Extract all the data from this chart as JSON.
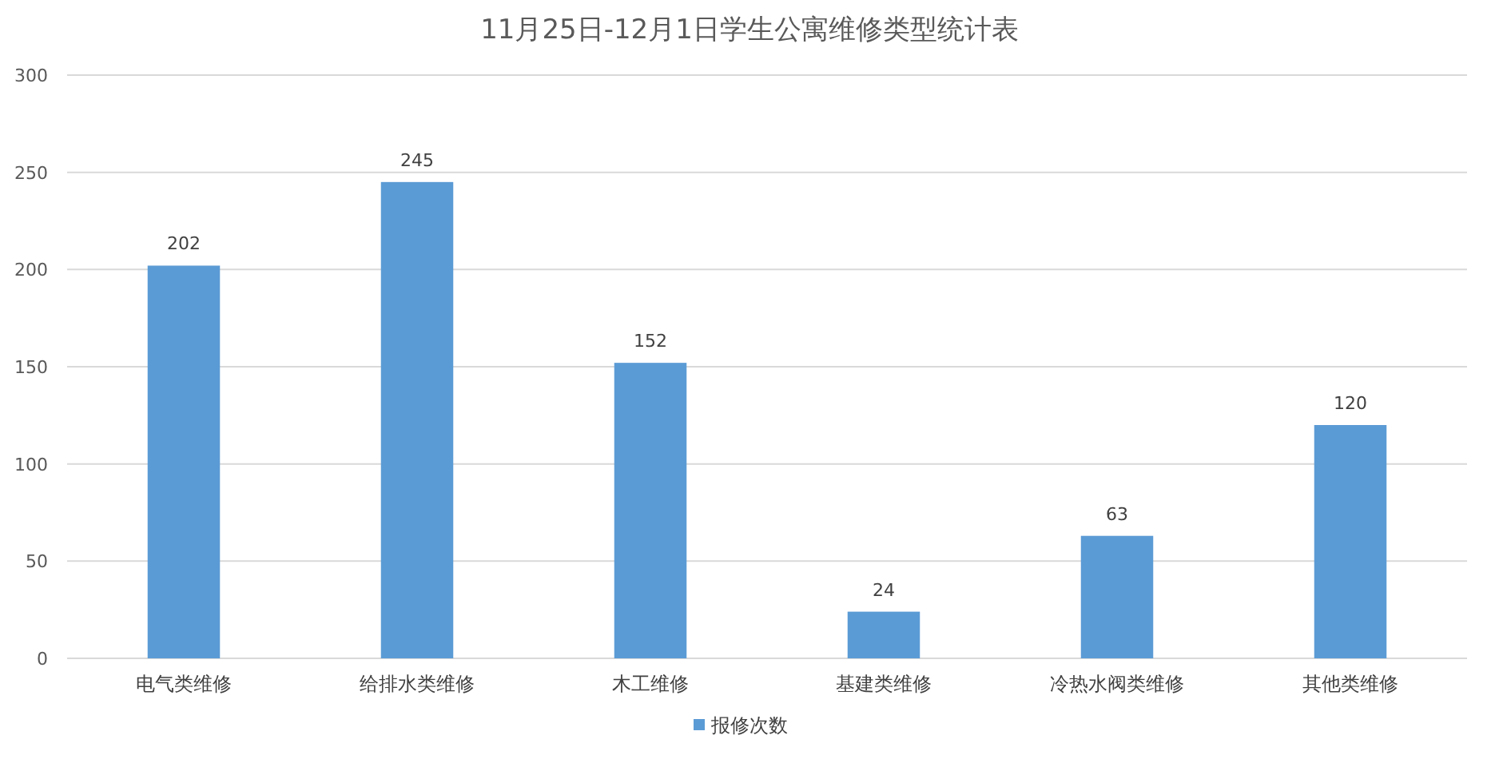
{
  "chart_data": {
    "type": "bar",
    "title": "11月25日-12月1日学生公寓维修类型统计表",
    "categories": [
      "电气类维修",
      "给排水类维修",
      "木工维修",
      "基建类维修",
      "冷热水阀类维修",
      "其他类维修"
    ],
    "series": [
      {
        "name": "报修次数",
        "color": "#5b9bd5",
        "values": [
          202,
          245,
          152,
          24,
          63,
          120
        ]
      }
    ],
    "ylim": [
      0,
      300
    ],
    "yticks": [
      0,
      50,
      100,
      150,
      200,
      250,
      300
    ],
    "grid": "y",
    "legend": "bottom",
    "data_labels": true
  }
}
